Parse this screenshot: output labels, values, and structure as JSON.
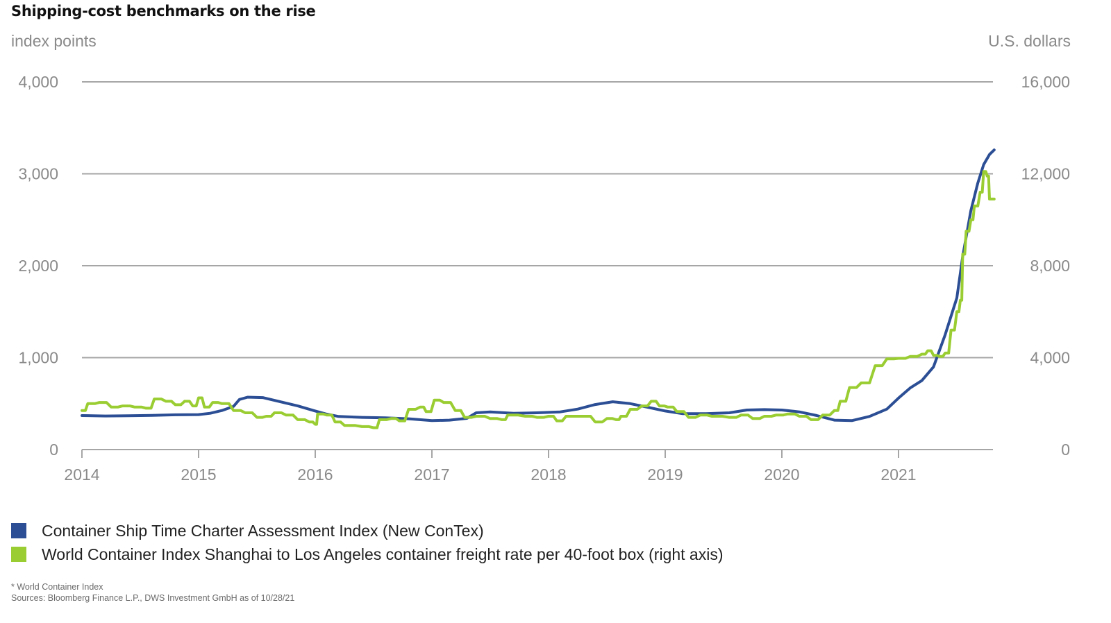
{
  "title": "Shipping-cost benchmarks on the rise",
  "footnotes": {
    "note": "* World Container Index",
    "sources": "Sources: Bloomberg Finance L.P., DWS Investment GmbH as of 10/28/21"
  },
  "chart_data": {
    "type": "line",
    "title": "Shipping-cost benchmarks on the rise",
    "ylabel_left": "index points",
    "ylabel_right": "U.S. dollars",
    "xlim": [
      2014,
      2021.83
    ],
    "ylim_left": [
      0,
      4000
    ],
    "ylim_right": [
      0,
      16000
    ],
    "grid": true,
    "legend_position": "bottom-left",
    "x_ticks": [
      "2014",
      "2015",
      "2016",
      "2017",
      "2018",
      "2019",
      "2020",
      "2021"
    ],
    "x_tick_values": [
      2014,
      2015,
      2016,
      2017,
      2018,
      2019,
      2020,
      2021
    ],
    "y_ticks_left": [
      "0",
      "1,000",
      "2,000",
      "3,000",
      "4,000"
    ],
    "y_tick_values_left": [
      0,
      1000,
      2000,
      3000,
      4000
    ],
    "y_ticks_right": [
      "0",
      "4,000",
      "8,000",
      "12,000",
      "16,000"
    ],
    "y_tick_values_right": [
      0,
      4000,
      8000,
      12000,
      16000
    ],
    "series": [
      {
        "name": "Container Ship Time Charter Assessment Index (New ConTex)",
        "axis": "left",
        "color": "#2b4e94",
        "points": [
          [
            2014.0,
            370
          ],
          [
            2014.2,
            365
          ],
          [
            2014.4,
            368
          ],
          [
            2014.6,
            372
          ],
          [
            2014.8,
            378
          ],
          [
            2015.0,
            380
          ],
          [
            2015.1,
            395
          ],
          [
            2015.2,
            425
          ],
          [
            2015.3,
            470
          ],
          [
            2015.35,
            545
          ],
          [
            2015.42,
            570
          ],
          [
            2015.55,
            565
          ],
          [
            2015.7,
            520
          ],
          [
            2015.85,
            475
          ],
          [
            2016.0,
            420
          ],
          [
            2016.1,
            385
          ],
          [
            2016.2,
            360
          ],
          [
            2016.4,
            350
          ],
          [
            2016.6,
            345
          ],
          [
            2016.8,
            335
          ],
          [
            2017.0,
            315
          ],
          [
            2017.15,
            320
          ],
          [
            2017.3,
            340
          ],
          [
            2017.38,
            400
          ],
          [
            2017.5,
            410
          ],
          [
            2017.7,
            395
          ],
          [
            2017.9,
            400
          ],
          [
            2018.1,
            410
          ],
          [
            2018.25,
            440
          ],
          [
            2018.4,
            490
          ],
          [
            2018.55,
            520
          ],
          [
            2018.7,
            500
          ],
          [
            2018.85,
            460
          ],
          [
            2019.0,
            420
          ],
          [
            2019.15,
            390
          ],
          [
            2019.35,
            390
          ],
          [
            2019.55,
            400
          ],
          [
            2019.7,
            430
          ],
          [
            2019.85,
            435
          ],
          [
            2020.0,
            430
          ],
          [
            2020.15,
            410
          ],
          [
            2020.3,
            370
          ],
          [
            2020.45,
            320
          ],
          [
            2020.6,
            315
          ],
          [
            2020.75,
            360
          ],
          [
            2020.9,
            440
          ],
          [
            2021.0,
            560
          ],
          [
            2021.1,
            670
          ],
          [
            2021.2,
            750
          ],
          [
            2021.3,
            900
          ],
          [
            2021.4,
            1250
          ],
          [
            2021.5,
            1650
          ],
          [
            2021.55,
            2100
          ],
          [
            2021.62,
            2600
          ],
          [
            2021.68,
            2900
          ],
          [
            2021.73,
            3100
          ],
          [
            2021.78,
            3210
          ],
          [
            2021.82,
            3260
          ]
        ]
      },
      {
        "name": "World Container Index Shanghai to Los Angeles container freight rate per 40-foot box (right axis)",
        "axis": "right",
        "color": "#9acd32",
        "points": [
          [
            2014.0,
            1700
          ],
          [
            2014.05,
            2000
          ],
          [
            2014.15,
            2050
          ],
          [
            2014.25,
            1850
          ],
          [
            2014.35,
            1900
          ],
          [
            2014.45,
            1850
          ],
          [
            2014.55,
            1800
          ],
          [
            2014.62,
            2200
          ],
          [
            2014.72,
            2100
          ],
          [
            2014.8,
            1950
          ],
          [
            2014.88,
            2100
          ],
          [
            2014.95,
            1900
          ],
          [
            2015.0,
            2250
          ],
          [
            2015.05,
            1850
          ],
          [
            2015.12,
            2050
          ],
          [
            2015.2,
            2000
          ],
          [
            2015.3,
            1700
          ],
          [
            2015.4,
            1600
          ],
          [
            2015.5,
            1400
          ],
          [
            2015.58,
            1450
          ],
          [
            2015.65,
            1600
          ],
          [
            2015.75,
            1500
          ],
          [
            2015.85,
            1300
          ],
          [
            2015.95,
            1200
          ],
          [
            2016.0,
            1100
          ],
          [
            2016.02,
            1550
          ],
          [
            2016.1,
            1500
          ],
          [
            2016.17,
            1200
          ],
          [
            2016.25,
            1050
          ],
          [
            2016.4,
            1000
          ],
          [
            2016.5,
            950
          ],
          [
            2016.55,
            1300
          ],
          [
            2016.65,
            1350
          ],
          [
            2016.72,
            1250
          ],
          [
            2016.8,
            1750
          ],
          [
            2016.9,
            1850
          ],
          [
            2016.95,
            1650
          ],
          [
            2017.02,
            2150
          ],
          [
            2017.1,
            2050
          ],
          [
            2017.2,
            1700
          ],
          [
            2017.28,
            1400
          ],
          [
            2017.38,
            1450
          ],
          [
            2017.5,
            1350
          ],
          [
            2017.6,
            1300
          ],
          [
            2017.65,
            1500
          ],
          [
            2017.8,
            1450
          ],
          [
            2017.9,
            1400
          ],
          [
            2018.0,
            1450
          ],
          [
            2018.07,
            1250
          ],
          [
            2018.15,
            1450
          ],
          [
            2018.3,
            1450
          ],
          [
            2018.4,
            1200
          ],
          [
            2018.5,
            1350
          ],
          [
            2018.58,
            1300
          ],
          [
            2018.62,
            1450
          ],
          [
            2018.7,
            1750
          ],
          [
            2018.8,
            1900
          ],
          [
            2018.88,
            2100
          ],
          [
            2018.95,
            1900
          ],
          [
            2019.02,
            1850
          ],
          [
            2019.1,
            1650
          ],
          [
            2019.2,
            1400
          ],
          [
            2019.3,
            1500
          ],
          [
            2019.4,
            1450
          ],
          [
            2019.55,
            1400
          ],
          [
            2019.65,
            1500
          ],
          [
            2019.75,
            1350
          ],
          [
            2019.85,
            1450
          ],
          [
            2019.95,
            1500
          ],
          [
            2020.05,
            1550
          ],
          [
            2020.15,
            1450
          ],
          [
            2020.25,
            1300
          ],
          [
            2020.35,
            1500
          ],
          [
            2020.45,
            1700
          ],
          [
            2020.5,
            2100
          ],
          [
            2020.58,
            2700
          ],
          [
            2020.68,
            2900
          ],
          [
            2020.8,
            3650
          ],
          [
            2020.9,
            3950
          ],
          [
            2021.0,
            3970
          ],
          [
            2021.1,
            4050
          ],
          [
            2021.2,
            4150
          ],
          [
            2021.25,
            4300
          ],
          [
            2021.3,
            4100
          ],
          [
            2021.35,
            4050
          ],
          [
            2021.4,
            4200
          ],
          [
            2021.45,
            5200
          ],
          [
            2021.5,
            6000
          ],
          [
            2021.53,
            6500
          ],
          [
            2021.55,
            8500
          ],
          [
            2021.58,
            9500
          ],
          [
            2021.62,
            10000
          ],
          [
            2021.65,
            10600
          ],
          [
            2021.7,
            11200
          ],
          [
            2021.73,
            12100
          ],
          [
            2021.76,
            11900
          ],
          [
            2021.78,
            10900
          ],
          [
            2021.82,
            10900
          ]
        ]
      }
    ]
  }
}
